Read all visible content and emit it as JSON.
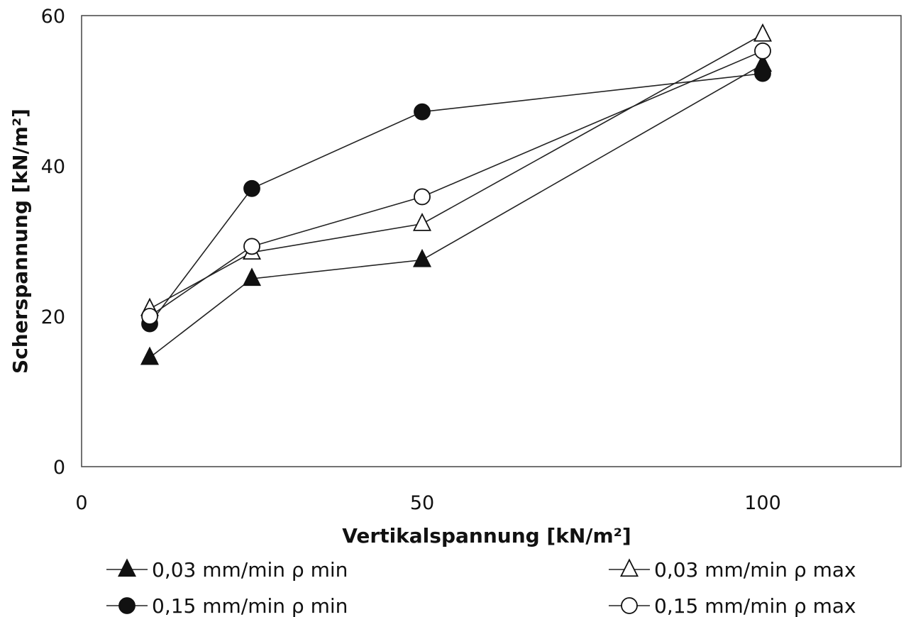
{
  "chart_data": {
    "type": "line",
    "xlabel": "Vertikalspannung [kN/m²]",
    "ylabel": "Scherspannung [kN/m²]",
    "xlim": [
      0,
      120
    ],
    "ylim": [
      0,
      60
    ],
    "xticks": [
      0,
      50,
      100
    ],
    "yticks": [
      0,
      20,
      40,
      60
    ],
    "grid": false,
    "legend_position": "bottom",
    "series": [
      {
        "name": "0,03 mm/min ρ min",
        "marker": "triangle",
        "fill": "filled",
        "x": [
          10,
          25,
          50,
          100
        ],
        "y": [
          14.5,
          25.0,
          27.5,
          53.5
        ]
      },
      {
        "name": "0,15 mm/min ρ min",
        "marker": "circle",
        "fill": "filled",
        "x": [
          10,
          25,
          50,
          100
        ],
        "y": [
          19.0,
          37.0,
          47.2,
          52.3
        ]
      },
      {
        "name": "0,03 mm/min ρ max",
        "marker": "triangle",
        "fill": "open",
        "x": [
          10,
          25,
          50,
          100
        ],
        "y": [
          21.0,
          28.5,
          32.3,
          57.5
        ]
      },
      {
        "name": "0,15 mm/min ρ max",
        "marker": "circle",
        "fill": "open",
        "x": [
          10,
          25,
          50,
          100
        ],
        "y": [
          20.0,
          29.3,
          35.9,
          55.3
        ]
      }
    ]
  }
}
